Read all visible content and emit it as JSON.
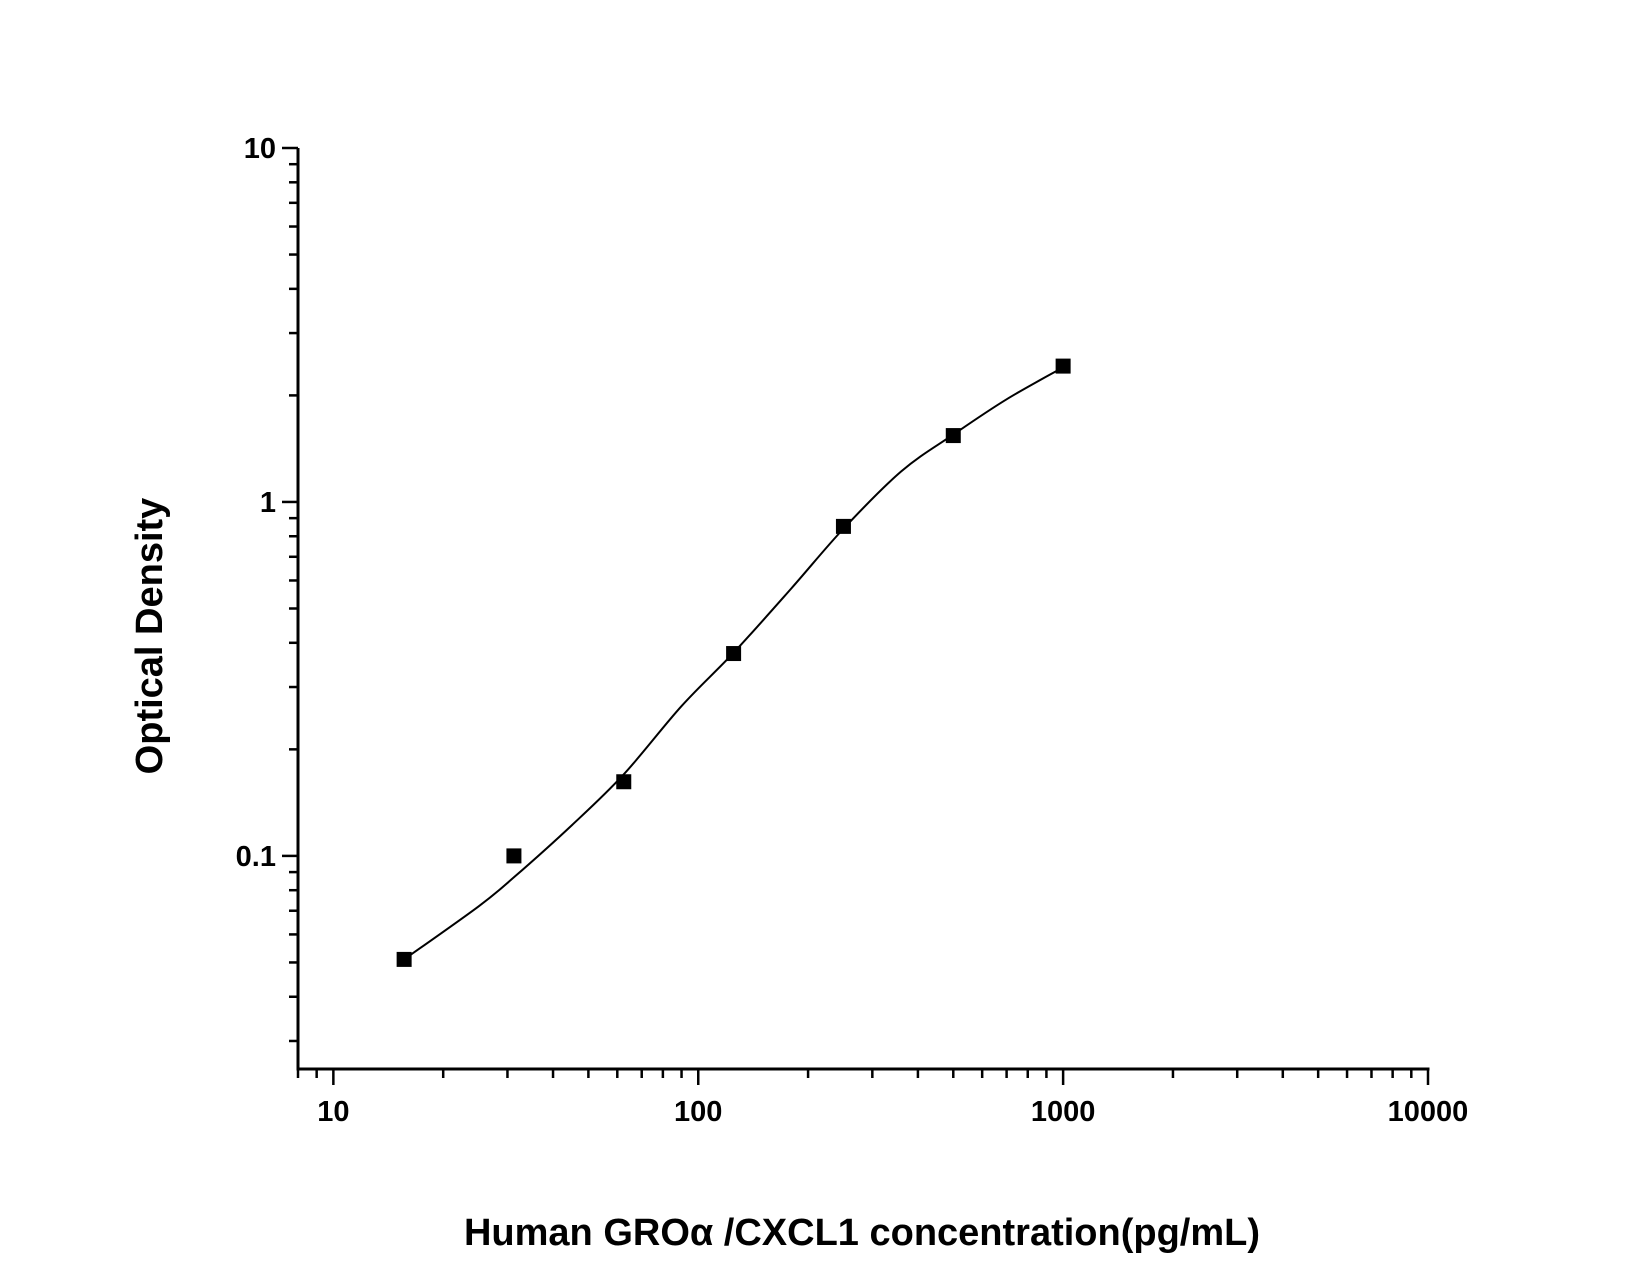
{
  "chart_data": {
    "type": "scatter",
    "title": "",
    "xlabel": "Human GROα /CXCL1 concentration(pg/mL)",
    "ylabel": "Optical Density",
    "x_scale": "log",
    "y_scale": "log",
    "xlim": [
      8,
      10000
    ],
    "ylim": [
      0.025,
      10
    ],
    "x_ticks": [
      {
        "value": 10,
        "label": "10"
      },
      {
        "value": 100,
        "label": "100"
      },
      {
        "value": 1000,
        "label": "1000"
      },
      {
        "value": 10000,
        "label": "10000"
      }
    ],
    "y_ticks": [
      {
        "value": 0.1,
        "label": "0.1"
      },
      {
        "value": 1,
        "label": "1"
      },
      {
        "value": 10,
        "label": "10"
      }
    ],
    "grid": false,
    "series": [
      {
        "marker": "square",
        "color": "#000000",
        "x": [
          15.63,
          31.25,
          62.5,
          125,
          250,
          500,
          1000
        ],
        "y": [
          0.051,
          0.1,
          0.162,
          0.373,
          0.853,
          1.54,
          2.42
        ]
      }
    ],
    "fit_curve": {
      "color": "#000000",
      "x": [
        15.63,
        25,
        31.25,
        45,
        62.5,
        90,
        125,
        180,
        250,
        360,
        500,
        700,
        1000
      ],
      "y": [
        0.051,
        0.072,
        0.087,
        0.122,
        0.17,
        0.265,
        0.375,
        0.57,
        0.84,
        1.22,
        1.55,
        1.95,
        2.4
      ]
    }
  }
}
